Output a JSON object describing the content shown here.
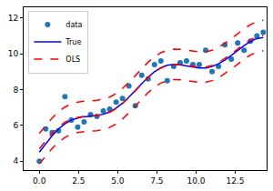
{
  "chart_data": {
    "type": "scatter",
    "x": [
      0,
      0.408,
      0.816,
      1.224,
      1.633,
      2.041,
      2.449,
      2.857,
      3.265,
      3.673,
      4.082,
      4.49,
      4.898,
      5.306,
      5.714,
      6.122,
      6.531,
      6.939,
      7.347,
      7.755,
      8.163,
      8.571,
      8.98,
      9.388,
      9.796,
      10.204,
      10.612,
      11.02,
      11.429,
      11.837,
      12.245,
      12.653,
      13.061,
      13.469,
      13.878,
      14.286
    ],
    "series": [
      {
        "name": "data",
        "type": "scatter",
        "marker": "circle",
        "color": "#1f77b4",
        "values": [
          4.0,
          5.8,
          5.6,
          5.7,
          7.6,
          6.3,
          5.9,
          6.2,
          6.6,
          6.5,
          6.8,
          6.9,
          7.3,
          7.5,
          8.2,
          7.1,
          8.8,
          8.6,
          9.4,
          9.6,
          8.5,
          9.3,
          9.5,
          9.6,
          9.4,
          9.4,
          10.2,
          9.0,
          9.3,
          10.5,
          9.7,
          10.6,
          10.2,
          10.7,
          11.0,
          11.2
        ]
      },
      {
        "name": "True",
        "type": "line",
        "color": "#0000ff",
        "line_style": "solid",
        "values": [
          4.5,
          4.98,
          5.42,
          5.8,
          6.09,
          6.29,
          6.41,
          6.48,
          6.51,
          6.55,
          6.62,
          6.75,
          6.96,
          7.24,
          7.58,
          7.96,
          8.34,
          8.7,
          9.0,
          9.22,
          9.36,
          9.41,
          9.39,
          9.33,
          9.26,
          9.21,
          9.21,
          9.29,
          9.44,
          9.65,
          9.91,
          10.19,
          10.46,
          10.69,
          10.85,
          10.91
        ]
      },
      {
        "name": "OLS",
        "type": "line",
        "color": "#ff0000",
        "line_style": "dashed",
        "values": [
          4.7,
          5.15,
          5.56,
          5.91,
          6.17,
          6.35,
          6.45,
          6.5,
          6.52,
          6.55,
          6.61,
          6.73,
          6.93,
          7.21,
          7.55,
          7.93,
          8.31,
          8.68,
          8.98,
          9.21,
          9.35,
          9.41,
          9.4,
          9.35,
          9.29,
          9.25,
          9.26,
          9.35,
          9.51,
          9.73,
          9.99,
          10.27,
          10.55,
          10.78,
          10.95,
          11.02
        ],
        "lower": [
          3.85,
          4.3,
          4.71,
          5.06,
          5.32,
          5.5,
          5.6,
          5.65,
          5.67,
          5.7,
          5.76,
          5.88,
          6.08,
          6.36,
          6.7,
          7.08,
          7.46,
          7.83,
          8.13,
          8.36,
          8.5,
          8.56,
          8.55,
          8.5,
          8.44,
          8.4,
          8.41,
          8.5,
          8.66,
          8.88,
          9.14,
          9.42,
          9.7,
          9.93,
          10.1,
          10.17
        ],
        "upper": [
          5.55,
          6.0,
          6.41,
          6.76,
          7.02,
          7.2,
          7.3,
          7.35,
          7.37,
          7.4,
          7.46,
          7.58,
          7.78,
          8.06,
          8.4,
          8.78,
          9.16,
          9.53,
          9.83,
          10.06,
          10.2,
          10.26,
          10.25,
          10.2,
          10.14,
          10.1,
          10.11,
          10.2,
          10.36,
          10.58,
          10.84,
          11.12,
          11.4,
          11.63,
          11.8,
          11.87
        ]
      }
    ],
    "xlim": [
      -1,
      14.5
    ],
    "ylim": [
      3.5,
      12.6
    ],
    "xticks": [
      {
        "value": 0,
        "label": "0.0"
      },
      2.5,
      {
        "value": 5,
        "label": "5.0"
      },
      7.5,
      {
        "value": 10,
        "label": "10.0"
      },
      12.5
    ],
    "yticks": [
      4,
      6,
      8,
      10,
      12
    ],
    "legend": "upper left",
    "grid": false
  }
}
